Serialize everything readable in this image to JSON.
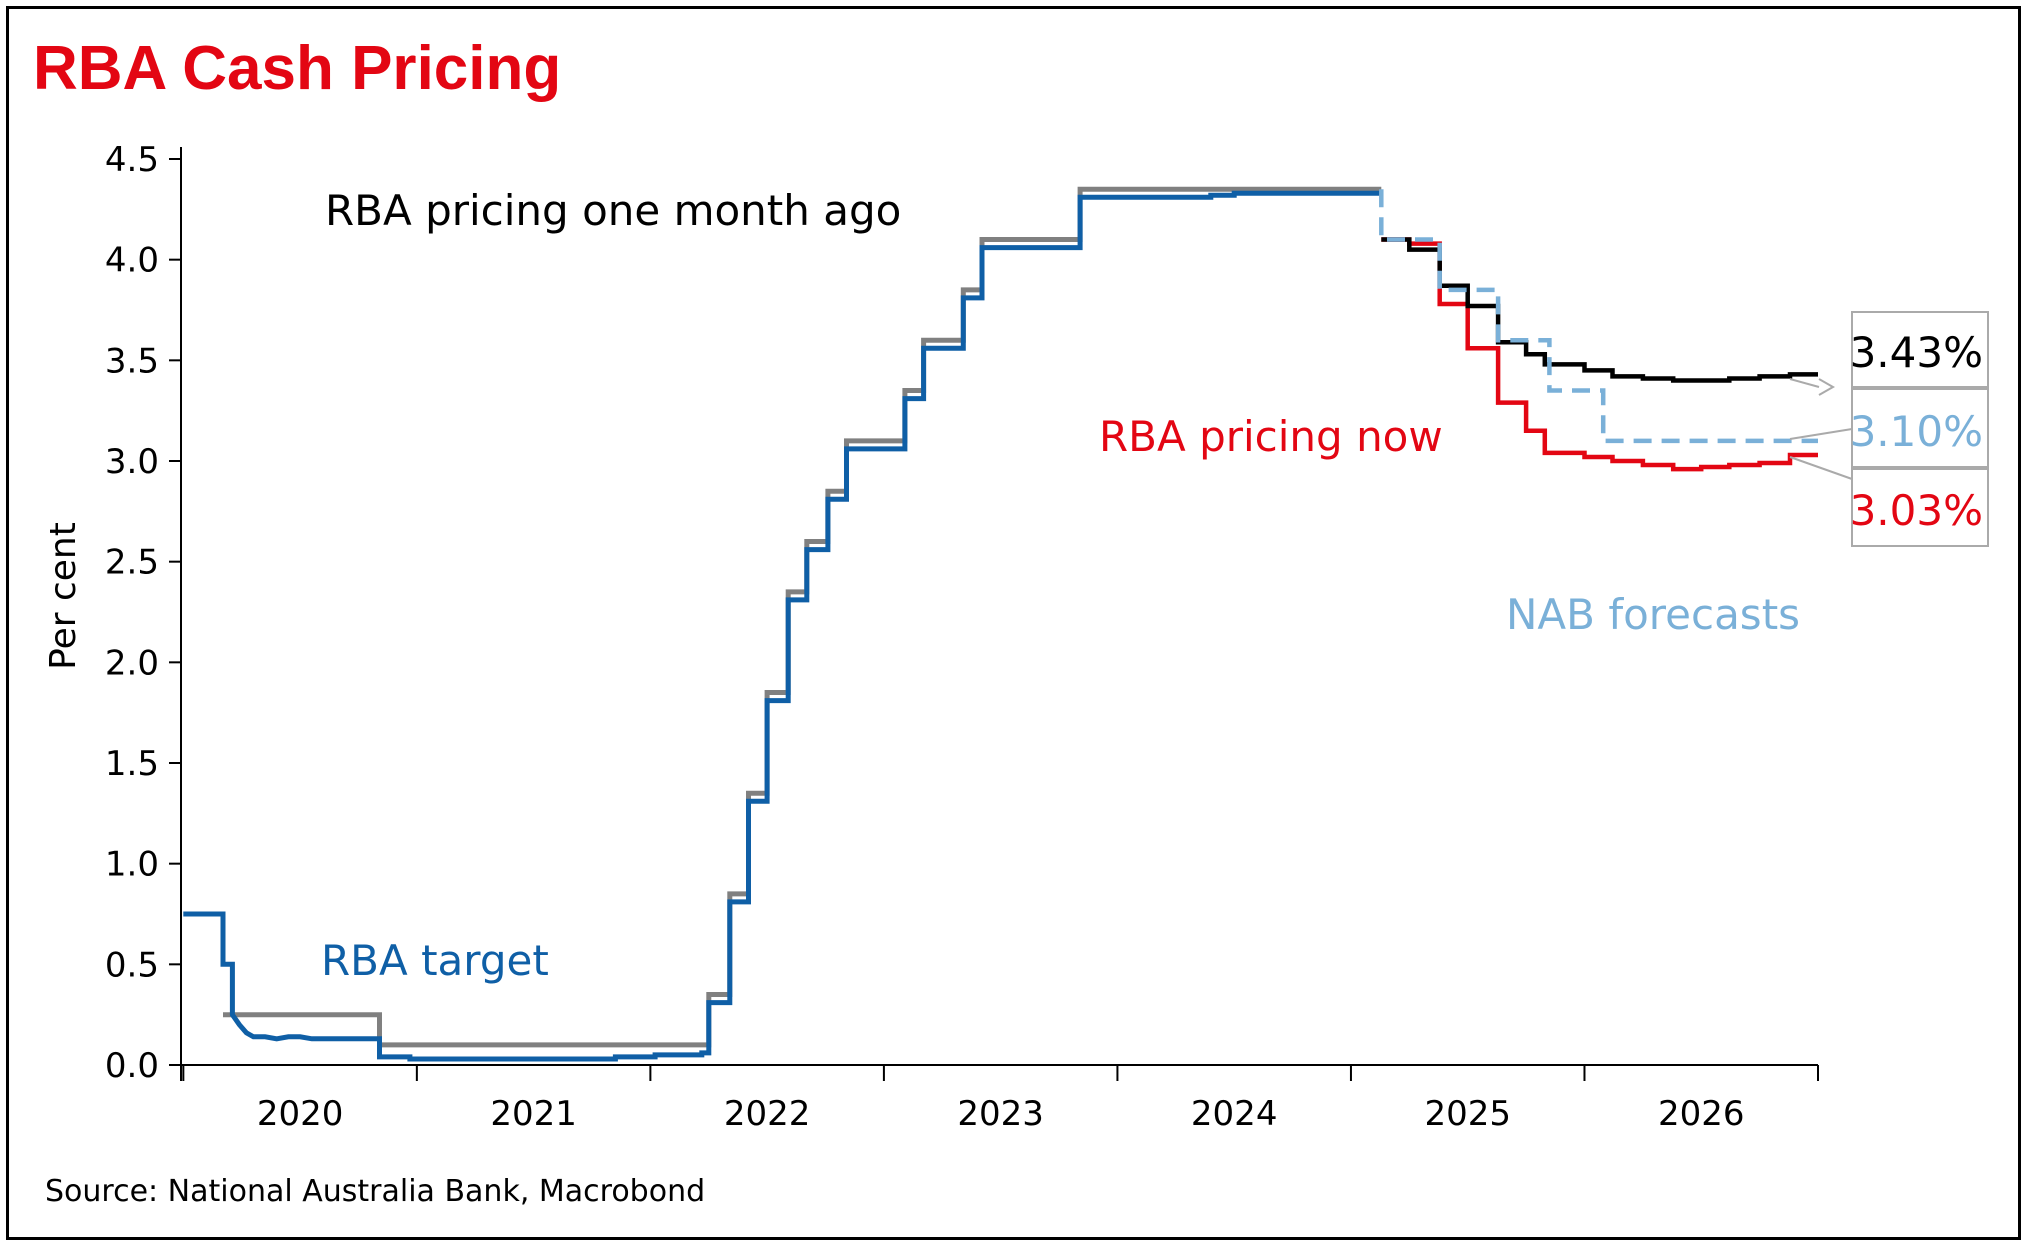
{
  "chart_data": {
    "type": "line",
    "title": "RBA Cash Pricing",
    "ylabel": "Per cent",
    "xlabel": "",
    "source": "Source: National Australia Bank, Macrobond",
    "ylim": [
      0,
      4.5
    ],
    "xlim": [
      2019.99,
      2027.0
    ],
    "yticks": [
      "0.0",
      "0.5",
      "1.0",
      "1.5",
      "2.0",
      "2.5",
      "3.0",
      "3.5",
      "4.0",
      "4.5"
    ],
    "xtick_labels": [
      "2020",
      "2021",
      "2022",
      "2023",
      "2024",
      "2025",
      "2026"
    ],
    "grid": false,
    "series_labels": {
      "month_ago": "RBA pricing one month ago",
      "now": "RBA pricing now",
      "target": "RBA target",
      "nab": "NAB forecasts"
    },
    "end_labels": {
      "month_ago": "3.43%",
      "nab": "3.10%",
      "now": "3.03%"
    },
    "colors": {
      "title": "#e30613",
      "target": "#0f5fa6",
      "month_ago": "#000000",
      "now": "#e30613",
      "nab": "#7ab0d8",
      "gray": "#808080"
    },
    "series": [
      {
        "key": "gray",
        "style": "solid",
        "points": [
          [
            2020.17,
            0.25
          ],
          [
            2020.84,
            0.25
          ],
          [
            2020.84,
            0.1
          ],
          [
            2022.25,
            0.1
          ],
          [
            2022.25,
            0.35
          ],
          [
            2022.34,
            0.35
          ],
          [
            2022.34,
            0.85
          ],
          [
            2022.42,
            0.85
          ],
          [
            2022.42,
            1.35
          ],
          [
            2022.5,
            1.35
          ],
          [
            2022.5,
            1.85
          ],
          [
            2022.59,
            1.85
          ],
          [
            2022.59,
            2.35
          ],
          [
            2022.67,
            2.35
          ],
          [
            2022.67,
            2.6
          ],
          [
            2022.76,
            2.6
          ],
          [
            2022.76,
            2.85
          ],
          [
            2022.84,
            2.85
          ],
          [
            2022.84,
            3.1
          ],
          [
            2023.09,
            3.1
          ],
          [
            2023.09,
            3.35
          ],
          [
            2023.17,
            3.35
          ],
          [
            2023.17,
            3.6
          ],
          [
            2023.34,
            3.6
          ],
          [
            2023.34,
            3.85
          ],
          [
            2023.42,
            3.85
          ],
          [
            2023.42,
            4.1
          ],
          [
            2023.84,
            4.1
          ],
          [
            2023.84,
            4.35
          ],
          [
            2025.13,
            4.35
          ]
        ]
      },
      {
        "key": "target",
        "style": "solid",
        "points": [
          [
            2020.0,
            0.75
          ],
          [
            2020.17,
            0.75
          ],
          [
            2020.17,
            0.5
          ],
          [
            2020.21,
            0.5
          ],
          [
            2020.21,
            0.25
          ],
          [
            2020.24,
            0.2
          ],
          [
            2020.27,
            0.16
          ],
          [
            2020.3,
            0.14
          ],
          [
            2020.35,
            0.14
          ],
          [
            2020.4,
            0.13
          ],
          [
            2020.45,
            0.14
          ],
          [
            2020.5,
            0.14
          ],
          [
            2020.55,
            0.13
          ],
          [
            2020.6,
            0.13
          ],
          [
            2020.84,
            0.13
          ],
          [
            2020.84,
            0.04
          ],
          [
            2020.97,
            0.04
          ],
          [
            2020.97,
            0.03
          ],
          [
            2021.85,
            0.03
          ],
          [
            2021.85,
            0.04
          ],
          [
            2022.02,
            0.04
          ],
          [
            2022.02,
            0.05
          ],
          [
            2022.22,
            0.05
          ],
          [
            2022.22,
            0.06
          ],
          [
            2022.25,
            0.06
          ],
          [
            2022.25,
            0.31
          ],
          [
            2022.34,
            0.31
          ],
          [
            2022.34,
            0.81
          ],
          [
            2022.42,
            0.81
          ],
          [
            2022.42,
            1.31
          ],
          [
            2022.5,
            1.31
          ],
          [
            2022.5,
            1.81
          ],
          [
            2022.59,
            1.81
          ],
          [
            2022.59,
            2.31
          ],
          [
            2022.67,
            2.31
          ],
          [
            2022.67,
            2.56
          ],
          [
            2022.76,
            2.56
          ],
          [
            2022.76,
            2.81
          ],
          [
            2022.84,
            2.81
          ],
          [
            2022.84,
            3.06
          ],
          [
            2023.09,
            3.06
          ],
          [
            2023.09,
            3.31
          ],
          [
            2023.17,
            3.31
          ],
          [
            2023.17,
            3.56
          ],
          [
            2023.34,
            3.56
          ],
          [
            2023.34,
            3.81
          ],
          [
            2023.42,
            3.81
          ],
          [
            2023.42,
            4.06
          ],
          [
            2023.84,
            4.06
          ],
          [
            2023.84,
            4.31
          ],
          [
            2024.4,
            4.31
          ],
          [
            2024.4,
            4.32
          ],
          [
            2024.5,
            4.32
          ],
          [
            2024.5,
            4.33
          ],
          [
            2025.13,
            4.33
          ]
        ]
      },
      {
        "key": "now",
        "style": "solid",
        "points": [
          [
            2025.13,
            4.1
          ],
          [
            2025.25,
            4.1
          ],
          [
            2025.25,
            4.08
          ],
          [
            2025.38,
            4.08
          ],
          [
            2025.38,
            3.78
          ],
          [
            2025.5,
            3.78
          ],
          [
            2025.5,
            3.56
          ],
          [
            2025.63,
            3.56
          ],
          [
            2025.63,
            3.29
          ],
          [
            2025.75,
            3.29
          ],
          [
            2025.75,
            3.15
          ],
          [
            2025.83,
            3.15
          ],
          [
            2025.83,
            3.04
          ],
          [
            2026.0,
            3.04
          ],
          [
            2026.0,
            3.02
          ],
          [
            2026.12,
            3.02
          ],
          [
            2026.12,
            3.0
          ],
          [
            2026.25,
            3.0
          ],
          [
            2026.25,
            2.98
          ],
          [
            2026.38,
            2.98
          ],
          [
            2026.38,
            2.96
          ],
          [
            2026.5,
            2.96
          ],
          [
            2026.5,
            2.97
          ],
          [
            2026.62,
            2.97
          ],
          [
            2026.62,
            2.98
          ],
          [
            2026.75,
            2.98
          ],
          [
            2026.75,
            2.99
          ],
          [
            2026.88,
            2.99
          ],
          [
            2026.88,
            3.03
          ],
          [
            2027.0,
            3.03
          ]
        ]
      },
      {
        "key": "month_ago",
        "style": "solid",
        "points": [
          [
            2025.13,
            4.1
          ],
          [
            2025.25,
            4.1
          ],
          [
            2025.25,
            4.05
          ],
          [
            2025.38,
            4.05
          ],
          [
            2025.38,
            3.87
          ],
          [
            2025.5,
            3.87
          ],
          [
            2025.5,
            3.77
          ],
          [
            2025.63,
            3.77
          ],
          [
            2025.63,
            3.59
          ],
          [
            2025.75,
            3.59
          ],
          [
            2025.75,
            3.53
          ],
          [
            2025.83,
            3.53
          ],
          [
            2025.83,
            3.48
          ],
          [
            2026.0,
            3.48
          ],
          [
            2026.0,
            3.45
          ],
          [
            2026.12,
            3.45
          ],
          [
            2026.12,
            3.42
          ],
          [
            2026.25,
            3.42
          ],
          [
            2026.25,
            3.41
          ],
          [
            2026.38,
            3.41
          ],
          [
            2026.38,
            3.4
          ],
          [
            2026.62,
            3.4
          ],
          [
            2026.62,
            3.41
          ],
          [
            2026.75,
            3.41
          ],
          [
            2026.75,
            3.42
          ],
          [
            2026.88,
            3.42
          ],
          [
            2026.88,
            3.43
          ],
          [
            2027.0,
            3.43
          ]
        ]
      },
      {
        "key": "nab",
        "style": "dashed",
        "points": [
          [
            2025.13,
            4.35
          ],
          [
            2025.13,
            4.1
          ],
          [
            2025.38,
            4.1
          ],
          [
            2025.38,
            3.85
          ],
          [
            2025.63,
            3.85
          ],
          [
            2025.63,
            3.6
          ],
          [
            2025.85,
            3.6
          ],
          [
            2025.85,
            3.35
          ],
          [
            2026.08,
            3.35
          ],
          [
            2026.08,
            3.1
          ],
          [
            2027.0,
            3.1
          ]
        ]
      }
    ]
  }
}
